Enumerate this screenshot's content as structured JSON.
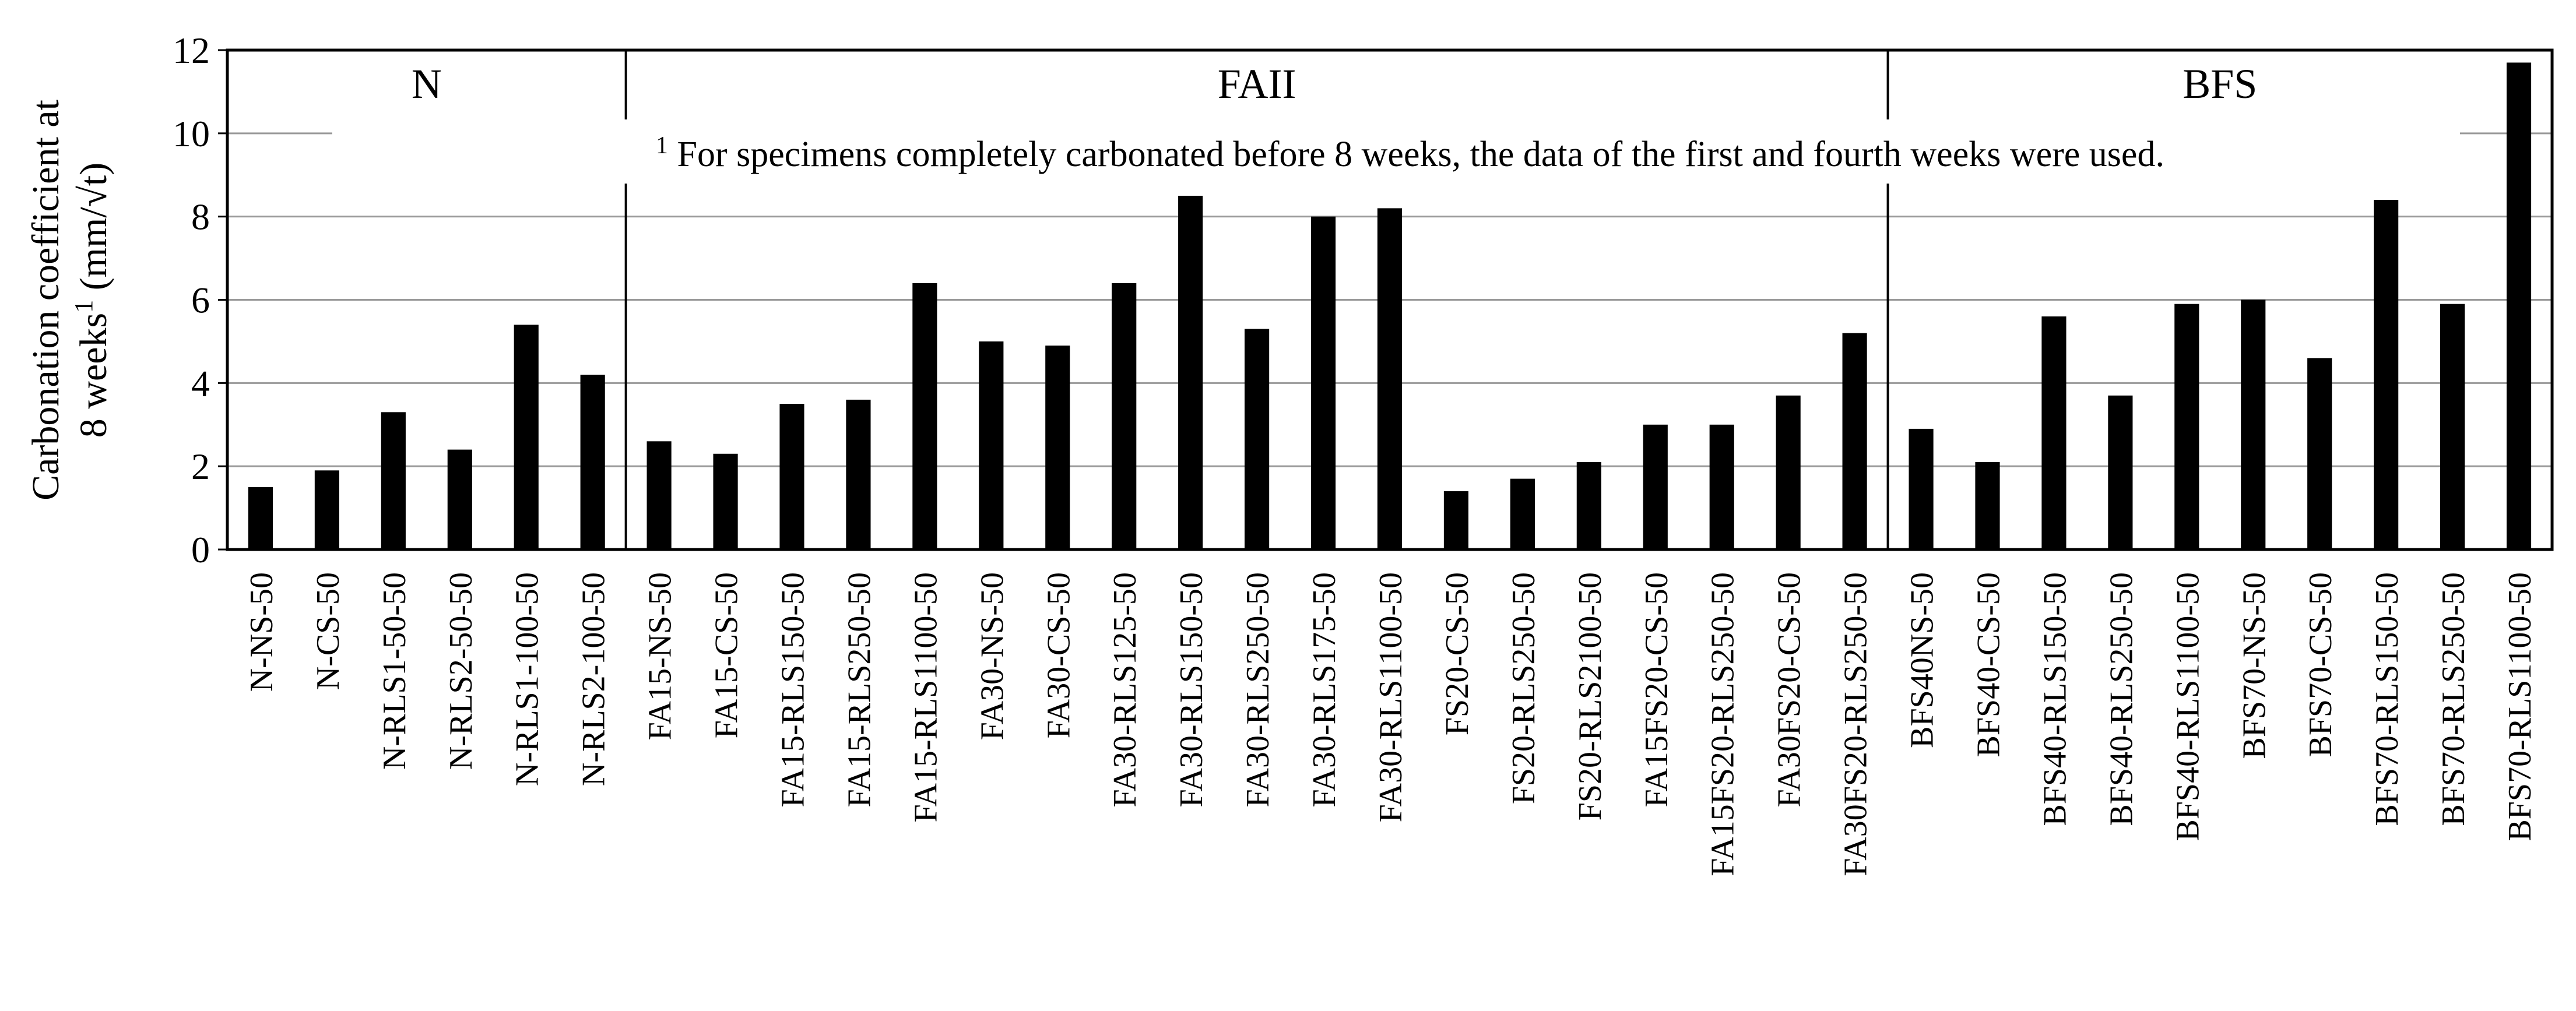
{
  "chart_data": {
    "type": "bar",
    "ylabel": {
      "line1": "Carbonation coefficient at",
      "line2_pre": "8 weeks",
      "line2_sup": "1",
      "line2_post": " (mm/√t)"
    },
    "ylim": [
      0,
      12
    ],
    "yticks": [
      "0",
      "2",
      "4",
      "6",
      "8",
      "10",
      "12"
    ],
    "grid": true,
    "note": {
      "sup": "1",
      "text": " For specimens completely carbonated before 8 weeks, the data of the first and fourth weeks were used."
    },
    "groups": [
      {
        "label": "N",
        "count": 6
      },
      {
        "label": "FAII",
        "count": 19
      },
      {
        "label": "BFS",
        "count": 10
      }
    ],
    "categories": [
      "N-NS-50",
      "N-CS-50",
      "N-RLS1-50-50",
      "N-RLS2-50-50",
      "N-RLS1-100-50",
      "N-RLS2-100-50",
      "FA15-NS-50",
      "FA15-CS-50",
      "FA15-RLS150-50",
      "FA15-RLS250-50",
      "FA15-RLS1100-50",
      "FA30-NS-50",
      "FA30-CS-50",
      "FA30-RLS125-50",
      "FA30-RLS150-50",
      "FA30-RLS250-50",
      "FA30-RLS175-50",
      "FA30-RLS1100-50",
      "FS20-CS-50",
      "FS20-RLS250-50",
      "FS20-RLS2100-50",
      "FA15FS20-CS-50",
      "FA15FS20-RLS250-50",
      "FA30FS20-CS-50",
      "FA30FS20-RLS250-50",
      "BFS40NS-50",
      "BFS40-CS-50",
      "BFS40-RLS150-50",
      "BFS40-RLS250-50",
      "BFS40-RLS1100-50",
      "BFS70-NS-50",
      "BFS70-CS-50",
      "BFS70-RLS150-50",
      "BFS70-RLS250-50",
      "BFS70-RLS1100-50"
    ],
    "values": [
      1.5,
      1.9,
      3.3,
      2.4,
      5.4,
      4.2,
      2.6,
      2.3,
      3.5,
      3.6,
      6.4,
      5.0,
      4.9,
      6.4,
      8.5,
      5.3,
      8.0,
      8.2,
      1.4,
      1.7,
      2.1,
      3.0,
      3.0,
      3.7,
      5.2,
      2.9,
      2.1,
      5.6,
      3.7,
      5.9,
      6.0,
      4.6,
      8.4,
      5.9,
      11.7
    ],
    "bar_color": "#000000",
    "grid_color": "#999999"
  }
}
